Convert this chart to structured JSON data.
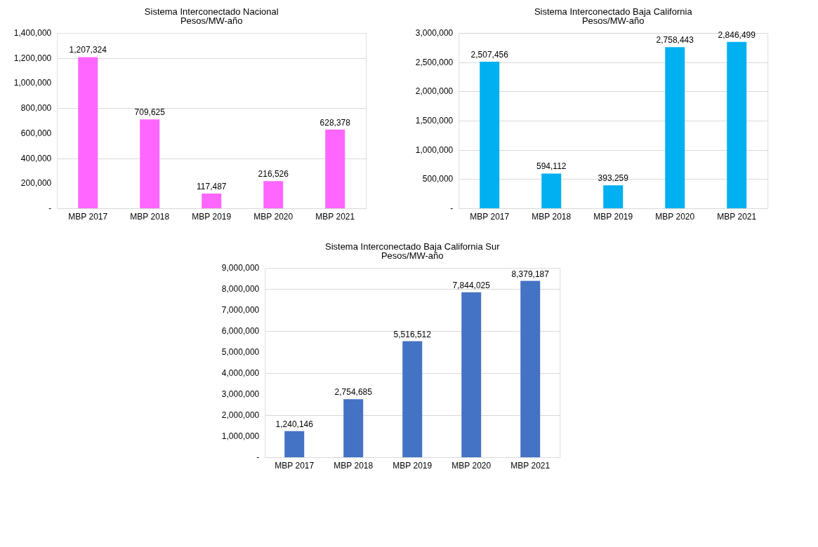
{
  "chart_data": [
    {
      "type": "bar",
      "title": "Sistema Interconectado Nacional",
      "subtitle": "Pesos/MW-año",
      "categories": [
        "MBP 2017",
        "MBP 2018",
        "MBP 2019",
        "MBP 2020",
        "MBP 2021"
      ],
      "values": [
        1207324,
        709625,
        117487,
        216526,
        628378
      ],
      "value_labels": [
        "1,207,324",
        "709,625",
        "117,487",
        "216,526",
        "628,378"
      ],
      "color": "#ff66ff",
      "ylim": [
        0,
        1400000
      ],
      "yticks": [
        {
          "value": 0,
          "label": "-"
        },
        {
          "value": 200000,
          "label": "200,000"
        },
        {
          "value": 400000,
          "label": "400,000"
        },
        {
          "value": 600000,
          "label": "600,000"
        },
        {
          "value": 800000,
          "label": "800,000"
        },
        {
          "value": 1000000,
          "label": "1,000,000"
        },
        {
          "value": 1200000,
          "label": "1,200,000"
        },
        {
          "value": 1400000,
          "label": "1,400,000"
        }
      ],
      "grid": "y"
    },
    {
      "type": "bar",
      "title": "Sistema Interconectado Baja California",
      "subtitle": "Pesos/MW-año",
      "categories": [
        "MBP 2017",
        "MBP 2018",
        "MBP 2019",
        "MBP 2020",
        "MBP 2021"
      ],
      "values": [
        2507456,
        594112,
        393259,
        2758443,
        2846499
      ],
      "value_labels": [
        "2,507,456",
        "594,112",
        "393,259",
        "2,758,443",
        "2,846,499"
      ],
      "color": "#00b0f0",
      "ylim": [
        0,
        3000000
      ],
      "yticks": [
        {
          "value": 0,
          "label": "-"
        },
        {
          "value": 500000,
          "label": "500,000"
        },
        {
          "value": 1000000,
          "label": "1,000,000"
        },
        {
          "value": 1500000,
          "label": "1,500,000"
        },
        {
          "value": 2000000,
          "label": "2,000,000"
        },
        {
          "value": 2500000,
          "label": "2,500,000"
        },
        {
          "value": 3000000,
          "label": "3,000,000"
        }
      ],
      "grid": "y"
    },
    {
      "type": "bar",
      "title": "Sistema Interconectado Baja California Sur",
      "subtitle": "Pesos/MW-año",
      "categories": [
        "MBP 2017",
        "MBP 2018",
        "MBP 2019",
        "MBP 2020",
        "MBP 2021"
      ],
      "values": [
        1240146,
        2754685,
        5516512,
        7844025,
        8379187
      ],
      "value_labels": [
        "1,240,146",
        "2,754,685",
        "5,516,512",
        "7,844,025",
        "8,379,187"
      ],
      "color": "#4472c4",
      "ylim": [
        0,
        9000000
      ],
      "yticks": [
        {
          "value": 0,
          "label": "-"
        },
        {
          "value": 1000000,
          "label": "1,000,000"
        },
        {
          "value": 2000000,
          "label": "2,000,000"
        },
        {
          "value": 3000000,
          "label": "3,000,000"
        },
        {
          "value": 4000000,
          "label": "4,000,000"
        },
        {
          "value": 5000000,
          "label": "5,000,000"
        },
        {
          "value": 6000000,
          "label": "6,000,000"
        },
        {
          "value": 7000000,
          "label": "7,000,000"
        },
        {
          "value": 8000000,
          "label": "8,000,000"
        },
        {
          "value": 9000000,
          "label": "9,000,000"
        }
      ],
      "grid": "y"
    }
  ]
}
